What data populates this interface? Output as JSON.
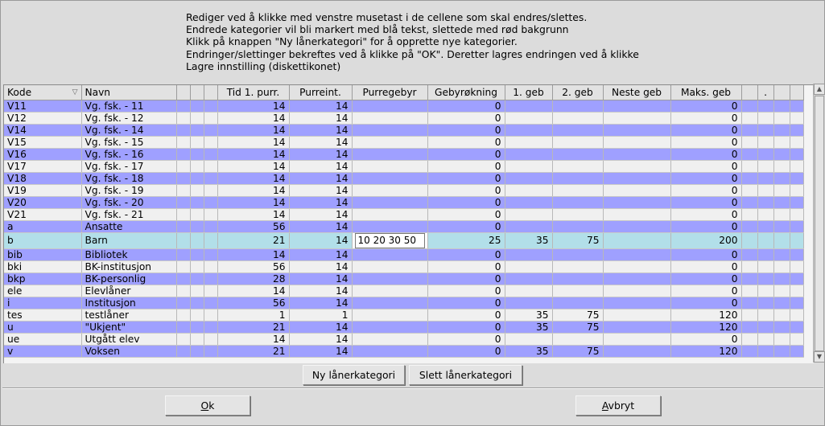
{
  "instructions": [
    "Rediger ved å klikke med venstre musetast i de cellene som skal endres/slettes.",
    "Endrede kategorier vil bli markert med blå tekst, slettede med rød bakgrunn",
    "Klikk på knappen \"Ny lånerkategori\" for å opprette nye kategorier.",
    "Endringer/slettinger bekreftes ved å klikke på \"OK\". Deretter lagres endringen ved å klikke",
    "Lagre innstilling (diskettikonet)"
  ],
  "columns": {
    "kode": "Kode",
    "navn": "Navn",
    "tid": "Tid 1. purr.",
    "purreint": "Purreint.",
    "purregebyr": "Purregebyr",
    "gebyrokning": "Gebyrøkning",
    "geb1": "1. geb",
    "geb2": "2. geb",
    "neste": "Neste geb",
    "maks": "Maks. geb",
    "dot": "."
  },
  "rows": [
    {
      "kode": "V11",
      "navn": "Vg. fsk. - 11",
      "tid": "14",
      "purreint": "14",
      "purregebyr": "",
      "gebyrokning": "0",
      "geb1": "",
      "geb2": "",
      "neste": "",
      "maks": "0"
    },
    {
      "kode": "V12",
      "navn": "Vg. fsk. - 12",
      "tid": "14",
      "purreint": "14",
      "purregebyr": "",
      "gebyrokning": "0",
      "geb1": "",
      "geb2": "",
      "neste": "",
      "maks": "0"
    },
    {
      "kode": "V14",
      "navn": "Vg. fsk. - 14",
      "tid": "14",
      "purreint": "14",
      "purregebyr": "",
      "gebyrokning": "0",
      "geb1": "",
      "geb2": "",
      "neste": "",
      "maks": "0"
    },
    {
      "kode": "V15",
      "navn": "Vg. fsk. - 15",
      "tid": "14",
      "purreint": "14",
      "purregebyr": "",
      "gebyrokning": "0",
      "geb1": "",
      "geb2": "",
      "neste": "",
      "maks": "0"
    },
    {
      "kode": "V16",
      "navn": "Vg. fsk. - 16",
      "tid": "14",
      "purreint": "14",
      "purregebyr": "",
      "gebyrokning": "0",
      "geb1": "",
      "geb2": "",
      "neste": "",
      "maks": "0"
    },
    {
      "kode": "V17",
      "navn": "Vg. fsk. - 17",
      "tid": "14",
      "purreint": "14",
      "purregebyr": "",
      "gebyrokning": "0",
      "geb1": "",
      "geb2": "",
      "neste": "",
      "maks": "0"
    },
    {
      "kode": "V18",
      "navn": "Vg. fsk. - 18",
      "tid": "14",
      "purreint": "14",
      "purregebyr": "",
      "gebyrokning": "0",
      "geb1": "",
      "geb2": "",
      "neste": "",
      "maks": "0"
    },
    {
      "kode": "V19",
      "navn": "Vg. fsk. - 19",
      "tid": "14",
      "purreint": "14",
      "purregebyr": "",
      "gebyrokning": "0",
      "geb1": "",
      "geb2": "",
      "neste": "",
      "maks": "0"
    },
    {
      "kode": "V20",
      "navn": "Vg. fsk. - 20",
      "tid": "14",
      "purreint": "14",
      "purregebyr": "",
      "gebyrokning": "0",
      "geb1": "",
      "geb2": "",
      "neste": "",
      "maks": "0"
    },
    {
      "kode": "V21",
      "navn": "Vg. fsk. - 21",
      "tid": "14",
      "purreint": "14",
      "purregebyr": "",
      "gebyrokning": "0",
      "geb1": "",
      "geb2": "",
      "neste": "",
      "maks": "0"
    },
    {
      "kode": "a",
      "navn": "Ansatte",
      "tid": "56",
      "purreint": "14",
      "purregebyr": "",
      "gebyrokning": "0",
      "geb1": "",
      "geb2": "",
      "neste": "",
      "maks": "0"
    },
    {
      "kode": "b",
      "navn": "Barn",
      "tid": "21",
      "purreint": "14",
      "purregebyr": "10 20 30 50",
      "gebyrokning": "25",
      "geb1": "35",
      "geb2": "75",
      "neste": "",
      "maks": "200",
      "selected": true
    },
    {
      "kode": "bib",
      "navn": "Bibliotek",
      "tid": "14",
      "purreint": "14",
      "purregebyr": "",
      "gebyrokning": "0",
      "geb1": "",
      "geb2": "",
      "neste": "",
      "maks": "0"
    },
    {
      "kode": "bki",
      "navn": "BK-institusjon",
      "tid": "56",
      "purreint": "14",
      "purregebyr": "",
      "gebyrokning": "0",
      "geb1": "",
      "geb2": "",
      "neste": "",
      "maks": "0"
    },
    {
      "kode": "bkp",
      "navn": "BK-personlig",
      "tid": "28",
      "purreint": "14",
      "purregebyr": "",
      "gebyrokning": "0",
      "geb1": "",
      "geb2": "",
      "neste": "",
      "maks": "0"
    },
    {
      "kode": "ele",
      "navn": "Elevlåner",
      "tid": "14",
      "purreint": "14",
      "purregebyr": "",
      "gebyrokning": "0",
      "geb1": "",
      "geb2": "",
      "neste": "",
      "maks": "0"
    },
    {
      "kode": "i",
      "navn": "Institusjon",
      "tid": "56",
      "purreint": "14",
      "purregebyr": "",
      "gebyrokning": "0",
      "geb1": "",
      "geb2": "",
      "neste": "",
      "maks": "0"
    },
    {
      "kode": "tes",
      "navn": "testlåner",
      "tid": "1",
      "purreint": "1",
      "purregebyr": "",
      "gebyrokning": "0",
      "geb1": "35",
      "geb2": "75",
      "neste": "",
      "maks": "120"
    },
    {
      "kode": "u",
      "navn": "\"Ukjent\"",
      "tid": "21",
      "purreint": "14",
      "purregebyr": "",
      "gebyrokning": "0",
      "geb1": "35",
      "geb2": "75",
      "neste": "",
      "maks": "120"
    },
    {
      "kode": "ue",
      "navn": "Utgått elev",
      "tid": "14",
      "purreint": "14",
      "purregebyr": "",
      "gebyrokning": "0",
      "geb1": "",
      "geb2": "",
      "neste": "",
      "maks": "0"
    },
    {
      "kode": "v",
      "navn": "Voksen",
      "tid": "21",
      "purreint": "14",
      "purregebyr": "",
      "gebyrokning": "0",
      "geb1": "35",
      "geb2": "75",
      "neste": "",
      "maks": "120"
    }
  ],
  "buttons": {
    "new_category": "Ny lånerkategori",
    "delete_category": "Slett lånerkategori",
    "ok_mnemonic": "O",
    "ok_rest": "k",
    "cancel_mnemonic": "A",
    "cancel_rest": "vbryt"
  },
  "colors": {
    "row_blue": "#9fa0ff",
    "row_light": "#f0f0f0",
    "row_selected": "#b2dfe9"
  },
  "icons": {
    "sort": "sort-down-icon",
    "scroll_up": "scroll-up-arrow-icon",
    "scroll_down": "scroll-down-arrow-icon"
  }
}
